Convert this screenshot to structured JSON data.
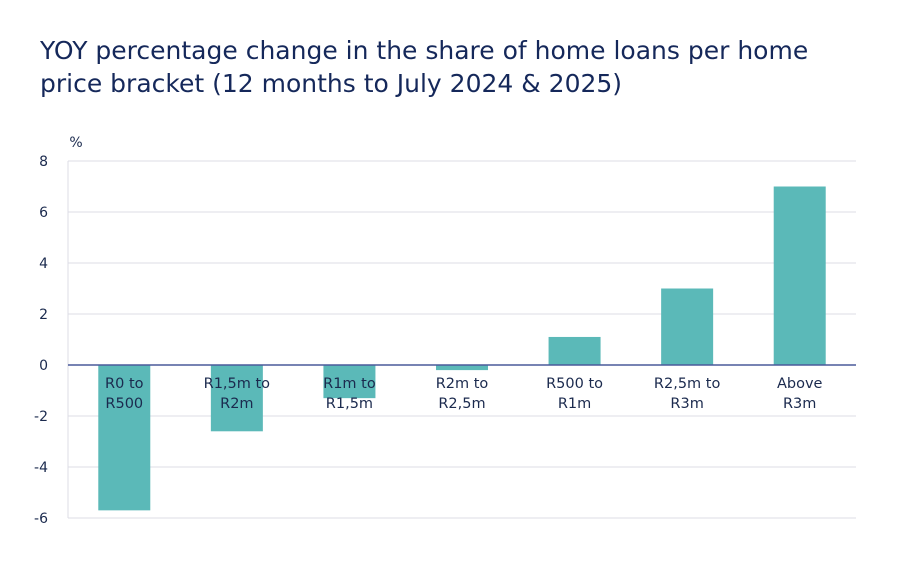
{
  "title": "YOY percentage change in the share of home loans per home price bracket (12 months to July 2024 & 2025)",
  "colors": {
    "bar": "#5bb9b8",
    "grid": "#dcdce6",
    "axis": "#4a5a9a",
    "text": "#1b2a4e"
  },
  "chart_data": {
    "type": "bar",
    "title": "YOY percentage change in the share of home loans per home price bracket (12 months to July 2024 & 2025)",
    "ylabel": "%",
    "xlabel": "",
    "ylim": [
      -6,
      8
    ],
    "yticks": [
      8,
      6,
      4,
      2,
      0,
      -2,
      -4,
      -6
    ],
    "grid": true,
    "categories": [
      [
        "R0 to",
        "R500"
      ],
      [
        "R1,5m to",
        "R2m"
      ],
      [
        "R1m to",
        "R1,5m"
      ],
      [
        "R2m to",
        "R2,5m"
      ],
      [
        "R500 to",
        "R1m"
      ],
      [
        "R2,5m to",
        "R3m"
      ],
      [
        "Above",
        "R3m"
      ]
    ],
    "values": [
      -5.7,
      -2.6,
      -1.3,
      -0.2,
      1.1,
      3.0,
      7.0
    ]
  }
}
